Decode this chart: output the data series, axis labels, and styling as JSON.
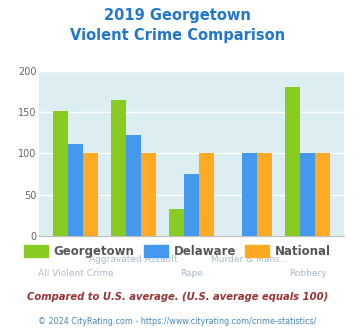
{
  "title_line1": "2019 Georgetown",
  "title_line2": "Violent Crime Comparison",
  "categories": [
    "All Violent Crime",
    "Aggravated Assault",
    "Rape",
    "Murder & Mans...",
    "Robbery"
  ],
  "georgetown": [
    152,
    165,
    33,
    0,
    180
  ],
  "delaware": [
    112,
    122,
    75,
    100,
    100
  ],
  "national": [
    100,
    100,
    100,
    100,
    100
  ],
  "georgetown_color": "#88cc22",
  "delaware_color": "#4499ee",
  "national_color": "#ffaa22",
  "bg_color": "#ddeef2",
  "title_color": "#2277cc",
  "ylim": [
    0,
    200
  ],
  "yticks": [
    0,
    50,
    100,
    150,
    200
  ],
  "legend_labels": [
    "Georgetown",
    "Delaware",
    "National"
  ],
  "footnote1": "Compared to U.S. average. (U.S. average equals 100)",
  "footnote2": "© 2024 CityRating.com - https://www.cityrating.com/crime-statistics/",
  "footnote1_color": "#993333",
  "footnote2_color": "#4488bb",
  "xlabel_color": "#aabbcc",
  "legend_text_color": "#555555"
}
